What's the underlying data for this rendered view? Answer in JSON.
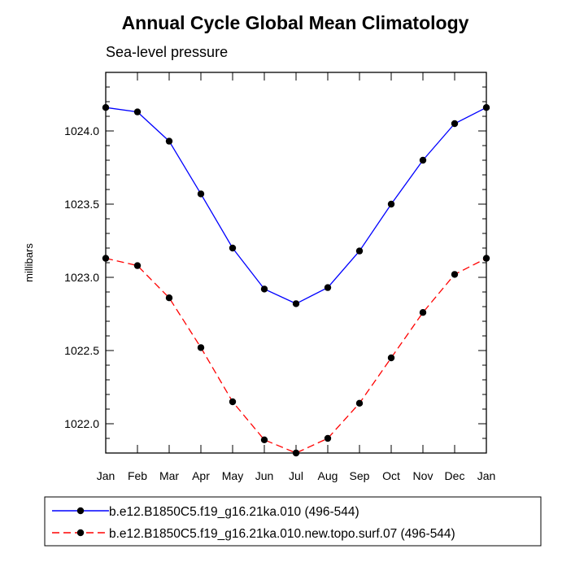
{
  "chart_data": {
    "type": "line",
    "title": "Annual Cycle Global Mean Climatology",
    "subtitle": "Sea-level pressure",
    "xlabel": "",
    "ylabel": "millibars",
    "categories": [
      "Jan",
      "Feb",
      "Mar",
      "Apr",
      "May",
      "Jun",
      "Jul",
      "Aug",
      "Sep",
      "Oct",
      "Nov",
      "Dec",
      "Jan"
    ],
    "ylim": [
      1021.8,
      1024.4
    ],
    "yticks": [
      1022.0,
      1022.5,
      1023.0,
      1023.5,
      1024.0
    ],
    "ytick_labels": [
      "1022.0",
      "1022.5",
      "1023.0",
      "1023.5",
      "1024.0"
    ],
    "series": [
      {
        "name": "b.e12.B1850C5.f19_g16.21ka.010 (496-544)",
        "color": "#0000ff",
        "dash": "solid",
        "values": [
          1024.16,
          1024.13,
          1023.93,
          1023.57,
          1023.2,
          1022.92,
          1022.82,
          1022.93,
          1023.18,
          1023.5,
          1023.8,
          1024.05,
          1024.16
        ]
      },
      {
        "name": "b.e12.B1850C5.f19_g16.21ka.010.new.topo.surf.07 (496-544)",
        "color": "#ff0000",
        "dash": "dashed",
        "values": [
          1023.13,
          1023.08,
          1022.86,
          1022.52,
          1022.15,
          1021.89,
          1021.8,
          1021.9,
          1022.14,
          1022.45,
          1022.76,
          1023.02,
          1023.13
        ]
      }
    ]
  }
}
